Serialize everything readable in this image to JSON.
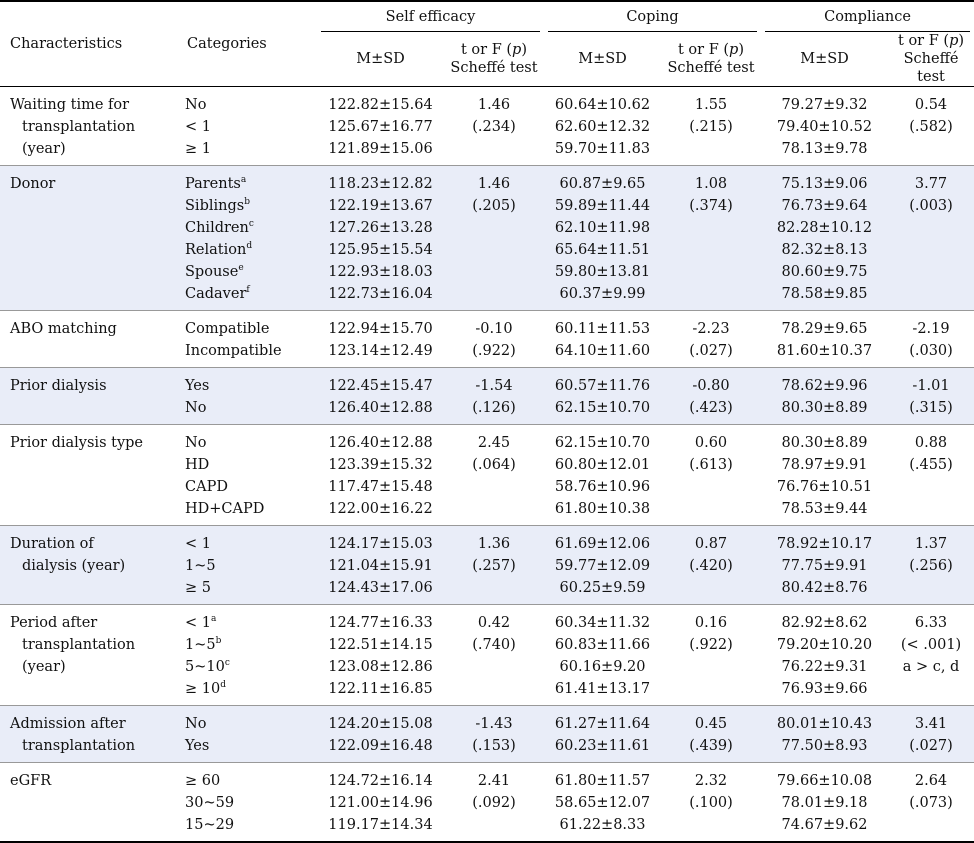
{
  "header": {
    "characteristics": "Characteristics",
    "categories": "Categories",
    "groups": [
      "Self efficacy",
      "Coping",
      "Compliance"
    ],
    "mean_sd": "M±SD",
    "test_line1": "t or F (p)",
    "test_line2": "Scheffé test"
  },
  "rows": [
    {
      "char": [
        "Waiting time for",
        "transplantation",
        "(year)"
      ],
      "cats": [
        "No",
        "< 1",
        "≥ 1"
      ],
      "sup": [
        "",
        "",
        ""
      ],
      "se": [
        "122.82±15.64",
        "125.67±16.77",
        "121.89±15.06"
      ],
      "se_t": [
        "1.46",
        "(.234)"
      ],
      "co": [
        "60.64±10.62",
        "62.60±12.32",
        "59.70±11.83"
      ],
      "co_t": [
        "1.55",
        "(.215)"
      ],
      "cm": [
        "79.27±9.32",
        "79.40±10.52",
        "78.13±9.78"
      ],
      "cm_t": [
        "0.54",
        "(.582)"
      ]
    },
    {
      "char": [
        "Donor"
      ],
      "cats": [
        "Parents",
        "Siblings",
        "Children",
        "Relation",
        "Spouse",
        "Cadaver"
      ],
      "sup": [
        "a",
        "b",
        "c",
        "d",
        "e",
        "f"
      ],
      "se": [
        "118.23±12.82",
        "122.19±13.67",
        "127.26±13.28",
        "125.95±15.54",
        "122.93±18.03",
        "122.73±16.04"
      ],
      "se_t": [
        "1.46",
        "(.205)"
      ],
      "co": [
        "60.87±9.65",
        "59.89±11.44",
        "62.10±11.98",
        "65.64±11.51",
        "59.80±13.81",
        "60.37±9.99"
      ],
      "co_t": [
        "1.08",
        "(.374)"
      ],
      "cm": [
        "75.13±9.06",
        "76.73±9.64",
        "82.28±10.12",
        "82.32±8.13",
        "80.60±9.75",
        "78.58±9.85"
      ],
      "cm_t": [
        "3.77",
        "(.003)"
      ]
    },
    {
      "char": [
        "ABO matching"
      ],
      "cats": [
        "Compatible",
        "Incompatible"
      ],
      "sup": [
        "",
        ""
      ],
      "se": [
        "122.94±15.70",
        "123.14±12.49"
      ],
      "se_t": [
        "-0.10",
        "(.922)"
      ],
      "co": [
        "60.11±11.53",
        "64.10±11.60"
      ],
      "co_t": [
        "-2.23",
        "(.027)"
      ],
      "cm": [
        "78.29±9.65",
        "81.60±10.37"
      ],
      "cm_t": [
        "-2.19",
        "(.030)"
      ]
    },
    {
      "char": [
        "Prior dialysis"
      ],
      "cats": [
        "Yes",
        "No"
      ],
      "sup": [
        "",
        ""
      ],
      "se": [
        "122.45±15.47",
        "126.40±12.88"
      ],
      "se_t": [
        "-1.54",
        "(.126)"
      ],
      "co": [
        "60.57±11.76",
        "62.15±10.70"
      ],
      "co_t": [
        "-0.80",
        "(.423)"
      ],
      "cm": [
        "78.62±9.96",
        "80.30±8.89"
      ],
      "cm_t": [
        "-1.01",
        "(.315)"
      ]
    },
    {
      "char": [
        "Prior dialysis type"
      ],
      "cats": [
        "No",
        "HD",
        "CAPD",
        "HD+CAPD"
      ],
      "sup": [
        "",
        "",
        "",
        ""
      ],
      "se": [
        "126.40±12.88",
        "123.39±15.32",
        "117.47±15.48",
        "122.00±16.22"
      ],
      "se_t": [
        "2.45",
        "(.064)"
      ],
      "co": [
        "62.15±10.70",
        "60.80±12.01",
        "58.76±10.96",
        "61.80±10.38"
      ],
      "co_t": [
        "0.60",
        "(.613)"
      ],
      "cm": [
        "80.30±8.89",
        "78.97±9.91",
        "76.76±10.51",
        "78.53±9.44"
      ],
      "cm_t": [
        "0.88",
        "(.455)"
      ]
    },
    {
      "char": [
        "Duration of",
        "dialysis (year)"
      ],
      "cats": [
        "< 1",
        "1~5",
        "≥ 5"
      ],
      "sup": [
        "",
        "",
        ""
      ],
      "se": [
        "124.17±15.03",
        "121.04±15.91",
        "124.43±17.06"
      ],
      "se_t": [
        "1.36",
        "(.257)"
      ],
      "co": [
        "61.69±12.06",
        "59.77±12.09",
        "60.25±9.59"
      ],
      "co_t": [
        "0.87",
        "(.420)"
      ],
      "cm": [
        "78.92±10.17",
        "77.75±9.91",
        "80.42±8.76"
      ],
      "cm_t": [
        "1.37",
        "(.256)"
      ]
    },
    {
      "char": [
        "Period after",
        "transplantation",
        "(year)"
      ],
      "cats": [
        "< 1",
        "1~5",
        "5~10",
        "≥ 10"
      ],
      "sup": [
        "a",
        "b",
        "c",
        "d"
      ],
      "se": [
        "124.77±16.33",
        "122.51±14.15",
        "123.08±12.86",
        "122.11±16.85"
      ],
      "se_t": [
        "0.42",
        "(.740)"
      ],
      "co": [
        "60.34±11.32",
        "60.83±11.66",
        "60.16±9.20",
        "61.41±13.17"
      ],
      "co_t": [
        "0.16",
        "(.922)"
      ],
      "cm": [
        "82.92±8.62",
        "79.20±10.20",
        "76.22±9.31",
        "76.93±9.66"
      ],
      "cm_t": [
        "6.33",
        "(< .001)",
        "a > c, d"
      ]
    },
    {
      "char": [
        "Admission after",
        "transplantation"
      ],
      "cats": [
        "No",
        "Yes"
      ],
      "sup": [
        "",
        ""
      ],
      "se": [
        "124.20±15.08",
        "122.09±16.48"
      ],
      "se_t": [
        "-1.43",
        "(.153)"
      ],
      "co": [
        "61.27±11.64",
        "60.23±11.61"
      ],
      "co_t": [
        "0.45",
        "(.439)"
      ],
      "cm": [
        "80.01±10.43",
        "77.50±8.93"
      ],
      "cm_t": [
        "3.41",
        "(.027)"
      ]
    },
    {
      "char": [
        "eGFR"
      ],
      "cats": [
        "≥ 60",
        "30~59",
        "15~29"
      ],
      "sup": [
        "",
        "",
        ""
      ],
      "se": [
        "124.72±16.14",
        "121.00±14.96",
        "119.17±14.34"
      ],
      "se_t": [
        "2.41",
        "(.092)"
      ],
      "co": [
        "61.80±11.57",
        "58.65±12.07",
        "61.22±8.33"
      ],
      "co_t": [
        "2.32",
        "(.100)"
      ],
      "cm": [
        "79.66±10.08",
        "78.01±9.18",
        "74.67±9.62"
      ],
      "cm_t": [
        "2.64",
        "(.073)"
      ]
    }
  ]
}
